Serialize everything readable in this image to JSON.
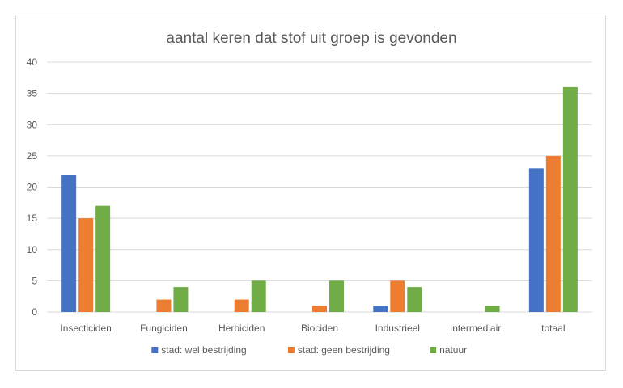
{
  "chart_data": {
    "type": "bar",
    "title": "aantal keren dat stof uit groep is gevonden",
    "xlabel": "",
    "ylabel": "",
    "ylim": [
      0,
      40
    ],
    "yticks": [
      0,
      5,
      10,
      15,
      20,
      25,
      30,
      35,
      40
    ],
    "grid": true,
    "legend_position": "bottom",
    "categories": [
      "Insecticiden",
      "Fungiciden",
      "Herbiciden",
      "Biociden",
      "Industrieel",
      "Intermediair",
      "totaal"
    ],
    "series": [
      {
        "name": "stad: wel bestrijding",
        "color": "#4472c4",
        "values": [
          22,
          0,
          0,
          0,
          1,
          0,
          23
        ]
      },
      {
        "name": "stad: geen bestrijding",
        "color": "#ed7d31",
        "values": [
          15,
          2,
          2,
          1,
          5,
          0,
          25
        ]
      },
      {
        "name": "natuur",
        "color": "#70ad47",
        "values": [
          17,
          4,
          5,
          5,
          4,
          1,
          36
        ]
      }
    ]
  }
}
